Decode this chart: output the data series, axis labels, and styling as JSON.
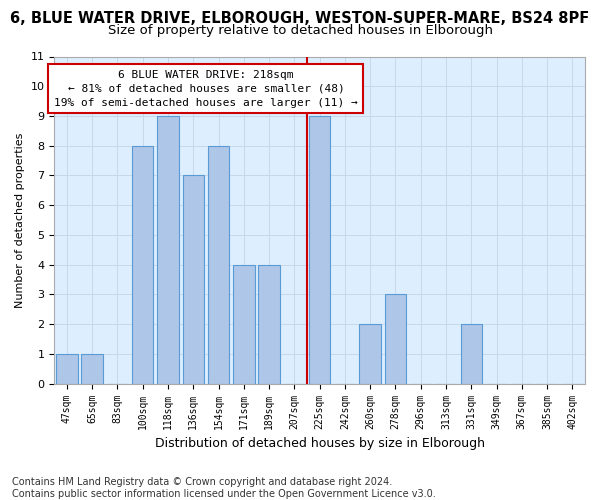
{
  "title1": "6, BLUE WATER DRIVE, ELBOROUGH, WESTON-SUPER-MARE, BS24 8PF",
  "title2": "Size of property relative to detached houses in Elborough",
  "xlabel": "Distribution of detached houses by size in Elborough",
  "ylabel": "Number of detached properties",
  "categories": [
    "47sqm",
    "65sqm",
    "83sqm",
    "100sqm",
    "118sqm",
    "136sqm",
    "154sqm",
    "171sqm",
    "189sqm",
    "207sqm",
    "225sqm",
    "242sqm",
    "260sqm",
    "278sqm",
    "296sqm",
    "313sqm",
    "331sqm",
    "349sqm",
    "367sqm",
    "385sqm",
    "402sqm"
  ],
  "values": [
    1,
    1,
    0,
    8,
    9,
    7,
    8,
    4,
    4,
    0,
    9,
    0,
    2,
    3,
    0,
    0,
    2,
    0,
    0,
    0,
    0
  ],
  "bar_color": "#aec6e8",
  "bar_edge_color": "#5b9bd5",
  "vline_pos": 10.5,
  "vline_color": "#cc0000",
  "annotation_text": "6 BLUE WATER DRIVE: 218sqm\n← 81% of detached houses are smaller (48)\n19% of semi-detached houses are larger (11) →",
  "annotation_box_color": "#cc0000",
  "annotation_bg_color": "#ffffff",
  "ylim": [
    0,
    11
  ],
  "yticks": [
    0,
    1,
    2,
    3,
    4,
    5,
    6,
    7,
    8,
    9,
    10,
    11
  ],
  "grid_color": "#c8d8e8",
  "bg_color": "#ddeeff",
  "footer": "Contains HM Land Registry data © Crown copyright and database right 2024.\nContains public sector information licensed under the Open Government Licence v3.0.",
  "title_fontsize": 10.5,
  "subtitle_fontsize": 9.5,
  "annot_fontsize": 8,
  "footer_fontsize": 7,
  "ylabel_fontsize": 8,
  "xlabel_fontsize": 9
}
